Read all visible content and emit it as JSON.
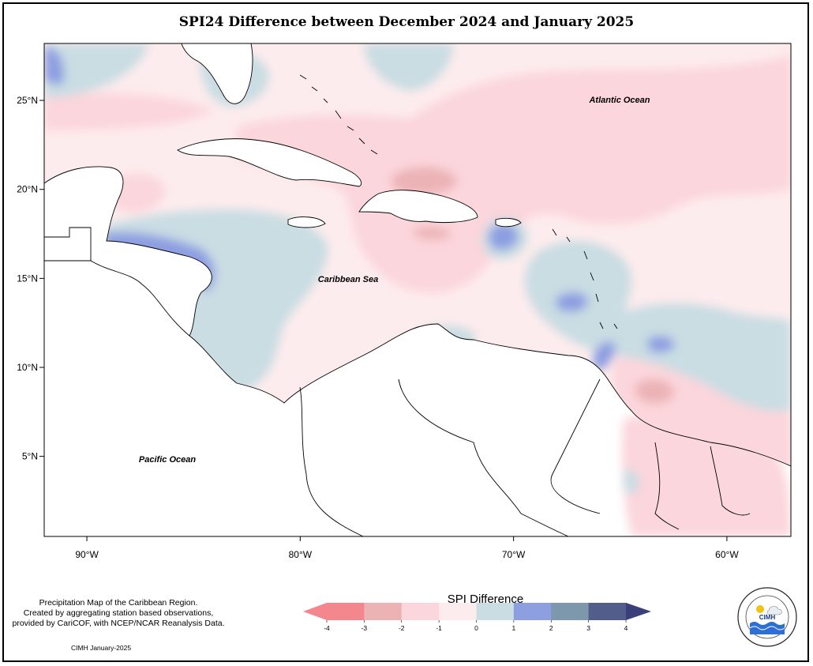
{
  "title": "SPI24 Difference between December 2024 and January 2025",
  "map": {
    "lon_range": [
      -92,
      -57
    ],
    "lat_range": [
      0.5,
      28.2
    ],
    "x_ticks": [
      "90°W",
      "80°W",
      "70°W",
      "60°W"
    ],
    "y_ticks": [
      "5°N",
      "10°N",
      "15°N",
      "20°N",
      "25°N"
    ],
    "labels": {
      "atlantic": "Atlantic Ocean",
      "caribbean": "Caribbean Sea",
      "pacific": "Pacific Ocean"
    },
    "colors": {
      "neg4": "#f4868e",
      "neg3": "#ecb3b5",
      "neg2": "#fbd6dc",
      "neg1": "#fdeced",
      "pos0": "#c9dde3",
      "pos1": "#8d9ee1",
      "pos2": "#7d97ad",
      "pos3": "#535d8c"
    }
  },
  "legend": {
    "title": "SPI Difference",
    "ticks": [
      "-4",
      "-3",
      "-2",
      "-1",
      "0",
      "1",
      "2",
      "3",
      "4"
    ]
  },
  "footer": {
    "line1": "Precipitation Map of the Caribbean Region.",
    "line2": "Created by aggregating station based observations,",
    "line3": "provided by CariCOF, with NCEP/NCAR Reanalysis Data.",
    "credit": "CIMH January-2025"
  },
  "logo": {
    "text": "CIMH",
    "ring_text": "Caribbean Institute for Meteorology and Hydrology"
  }
}
